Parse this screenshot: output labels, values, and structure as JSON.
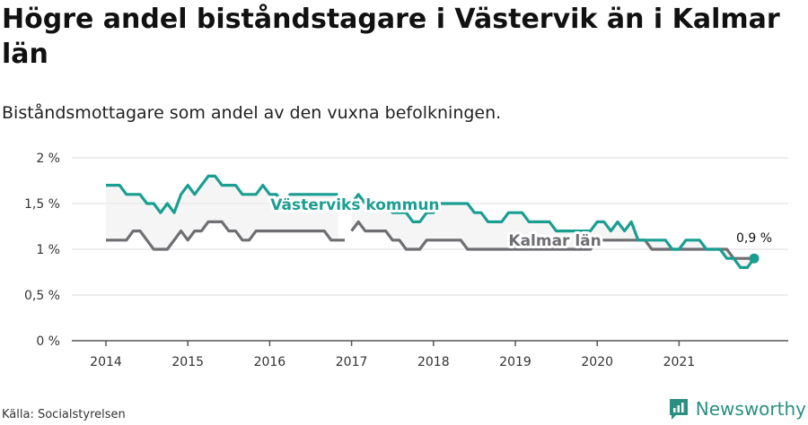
{
  "title": "Högre andel biståndstagare i Västervik än i Kalmar län",
  "subtitle": "Biståndsmottagare som andel av den vuxna befolkningen.",
  "source": "Källa: Socialstyrelsen",
  "brand": "Newsworthy",
  "colors": {
    "vastervik": "#1a9e91",
    "kalmar": "#6e6e73",
    "band": "#ececec",
    "grid": "#dddddd",
    "axis": "#555555",
    "brand": "#2a8f82"
  },
  "chart_data": {
    "type": "line",
    "x_unit": "month index (0 = Jan 2014)",
    "y_ticks": [
      {
        "value": 0,
        "label": "0 %"
      },
      {
        "value": 0.5,
        "label": "0,5 %"
      },
      {
        "value": 1,
        "label": "1 %"
      },
      {
        "value": 1.5,
        "label": "1,5 %"
      },
      {
        "value": 2,
        "label": "2 %"
      }
    ],
    "x_ticks": [
      {
        "value": 0,
        "label": "2014"
      },
      {
        "value": 12,
        "label": "2015"
      },
      {
        "value": 24,
        "label": "2016"
      },
      {
        "value": 36,
        "label": "2017"
      },
      {
        "value": 48,
        "label": "2018"
      },
      {
        "value": 60,
        "label": "2019"
      },
      {
        "value": 72,
        "label": "2020"
      },
      {
        "value": 84,
        "label": "2021"
      }
    ],
    "xlim": [
      -5,
      100
    ],
    "ylim": [
      0,
      2
    ],
    "end_label": "0,9 %",
    "series": [
      {
        "name": "Västerviks kommun",
        "key": "vastervik",
        "points": [
          [
            0,
            1.7
          ],
          [
            1,
            1.7
          ],
          [
            2,
            1.7
          ],
          [
            3,
            1.6
          ],
          [
            4,
            1.6
          ],
          [
            5,
            1.6
          ],
          [
            6,
            1.5
          ],
          [
            7,
            1.5
          ],
          [
            8,
            1.4
          ],
          [
            9,
            1.5
          ],
          [
            10,
            1.4
          ],
          [
            11,
            1.6
          ],
          [
            12,
            1.7
          ],
          [
            13,
            1.6
          ],
          [
            14,
            1.7
          ],
          [
            15,
            1.8
          ],
          [
            16,
            1.8
          ],
          [
            17,
            1.7
          ],
          [
            18,
            1.7
          ],
          [
            19,
            1.7
          ],
          [
            20,
            1.6
          ],
          [
            21,
            1.6
          ],
          [
            22,
            1.6
          ],
          [
            23,
            1.7
          ],
          [
            24,
            1.6
          ],
          [
            25,
            1.6
          ],
          [
            26,
            1.5
          ],
          [
            27,
            1.6
          ],
          [
            28,
            1.6
          ],
          [
            29,
            1.6
          ],
          [
            30,
            1.6
          ],
          [
            31,
            1.6
          ],
          [
            32,
            1.6
          ],
          [
            33,
            1.6
          ],
          [
            34,
            1.6
          ],
          null,
          [
            36,
            1.5
          ],
          [
            37,
            1.6
          ],
          [
            38,
            1.5
          ],
          [
            39,
            1.5
          ],
          [
            40,
            1.5
          ],
          [
            41,
            1.5
          ],
          [
            42,
            1.4
          ],
          [
            43,
            1.4
          ],
          [
            44,
            1.4
          ],
          [
            45,
            1.3
          ],
          [
            46,
            1.3
          ],
          [
            47,
            1.4
          ],
          [
            48,
            1.4
          ],
          [
            49,
            1.5
          ],
          [
            50,
            1.5
          ],
          [
            51,
            1.5
          ],
          [
            52,
            1.5
          ],
          [
            53,
            1.5
          ],
          [
            54,
            1.4
          ],
          [
            55,
            1.4
          ],
          [
            56,
            1.3
          ],
          [
            57,
            1.3
          ],
          [
            58,
            1.3
          ],
          [
            59,
            1.4
          ],
          [
            60,
            1.4
          ],
          [
            61,
            1.4
          ],
          [
            62,
            1.3
          ],
          [
            63,
            1.3
          ],
          [
            64,
            1.3
          ],
          [
            65,
            1.3
          ],
          [
            66,
            1.2
          ],
          [
            67,
            1.2
          ],
          [
            68,
            1.2
          ],
          [
            69,
            1.2
          ],
          [
            70,
            1.2
          ],
          [
            71,
            1.2
          ],
          [
            72,
            1.3
          ],
          [
            73,
            1.3
          ],
          [
            74,
            1.2
          ],
          [
            75,
            1.3
          ],
          [
            76,
            1.2
          ],
          [
            77,
            1.3
          ],
          [
            78,
            1.1
          ],
          [
            79,
            1.1
          ],
          [
            80,
            1.1
          ],
          [
            81,
            1.1
          ],
          [
            82,
            1.1
          ],
          [
            83,
            1.0
          ],
          [
            84,
            1.0
          ],
          [
            85,
            1.1
          ],
          [
            86,
            1.1
          ],
          [
            87,
            1.1
          ],
          [
            88,
            1.0
          ],
          [
            89,
            1.0
          ],
          [
            90,
            1.0
          ],
          [
            91,
            0.9
          ],
          [
            92,
            0.9
          ],
          [
            93,
            0.8
          ],
          [
            94,
            0.8
          ],
          [
            95,
            0.9
          ]
        ]
      },
      {
        "name": "Kalmar län",
        "key": "kalmar",
        "points": [
          [
            0,
            1.1
          ],
          [
            1,
            1.1
          ],
          [
            2,
            1.1
          ],
          [
            3,
            1.1
          ],
          [
            4,
            1.2
          ],
          [
            5,
            1.2
          ],
          [
            6,
            1.1
          ],
          [
            7,
            1.0
          ],
          [
            8,
            1.0
          ],
          [
            9,
            1.0
          ],
          [
            10,
            1.1
          ],
          [
            11,
            1.2
          ],
          [
            12,
            1.1
          ],
          [
            13,
            1.2
          ],
          [
            14,
            1.2
          ],
          [
            15,
            1.3
          ],
          [
            16,
            1.3
          ],
          [
            17,
            1.3
          ],
          [
            18,
            1.2
          ],
          [
            19,
            1.2
          ],
          [
            20,
            1.1
          ],
          [
            21,
            1.1
          ],
          [
            22,
            1.2
          ],
          [
            23,
            1.2
          ],
          [
            24,
            1.2
          ],
          [
            25,
            1.2
          ],
          [
            26,
            1.2
          ],
          [
            27,
            1.2
          ],
          [
            28,
            1.2
          ],
          [
            29,
            1.2
          ],
          [
            30,
            1.2
          ],
          [
            31,
            1.2
          ],
          [
            32,
            1.2
          ],
          [
            33,
            1.1
          ],
          [
            34,
            1.1
          ],
          [
            35,
            1.1
          ],
          null,
          [
            36,
            1.2
          ],
          [
            37,
            1.3
          ],
          [
            38,
            1.2
          ],
          [
            39,
            1.2
          ],
          [
            40,
            1.2
          ],
          [
            41,
            1.2
          ],
          [
            42,
            1.1
          ],
          [
            43,
            1.1
          ],
          [
            44,
            1.0
          ],
          [
            45,
            1.0
          ],
          [
            46,
            1.0
          ],
          [
            47,
            1.1
          ],
          [
            48,
            1.1
          ],
          [
            49,
            1.1
          ],
          [
            50,
            1.1
          ],
          [
            51,
            1.1
          ],
          [
            52,
            1.1
          ],
          [
            53,
            1.0
          ],
          [
            54,
            1.0
          ],
          [
            55,
            1.0
          ],
          [
            56,
            1.0
          ],
          [
            57,
            1.0
          ],
          [
            58,
            1.0
          ],
          [
            59,
            1.0
          ],
          [
            60,
            1.0
          ],
          [
            61,
            1.0
          ],
          [
            62,
            1.0
          ],
          [
            63,
            1.0
          ],
          [
            64,
            1.0
          ],
          [
            65,
            1.0
          ],
          [
            66,
            1.0
          ],
          [
            67,
            1.0
          ],
          [
            68,
            1.0
          ],
          [
            69,
            1.0
          ],
          [
            70,
            1.0
          ],
          [
            71,
            1.0
          ],
          [
            72,
            1.1
          ],
          [
            73,
            1.1
          ],
          [
            74,
            1.1
          ],
          [
            75,
            1.1
          ],
          [
            76,
            1.1
          ],
          [
            77,
            1.1
          ],
          [
            78,
            1.1
          ],
          [
            79,
            1.1
          ],
          [
            80,
            1.0
          ],
          [
            81,
            1.0
          ],
          [
            82,
            1.0
          ],
          [
            83,
            1.0
          ],
          [
            84,
            1.0
          ],
          [
            85,
            1.0
          ],
          [
            86,
            1.0
          ],
          [
            87,
            1.0
          ],
          [
            88,
            1.0
          ],
          [
            89,
            1.0
          ],
          [
            90,
            1.0
          ],
          [
            91,
            1.0
          ],
          [
            92,
            0.9
          ],
          [
            93,
            0.9
          ],
          [
            94,
            0.9
          ],
          [
            95,
            0.9
          ]
        ]
      }
    ]
  }
}
